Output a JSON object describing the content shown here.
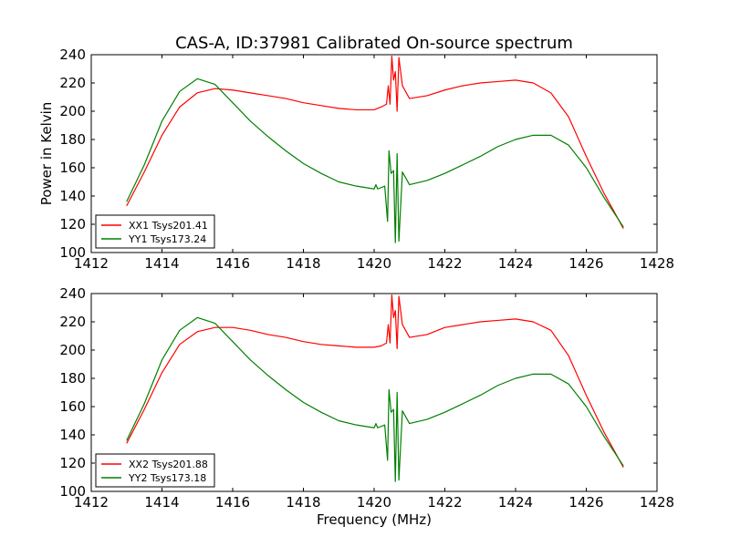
{
  "chart_data": [
    {
      "type": "line",
      "title": "CAS-A, ID:37981 Calibrated On-source spectrum",
      "xlabel": "",
      "ylabel": "Power in Kelvin",
      "xlim": [
        1412,
        1428
      ],
      "ylim": [
        100,
        240
      ],
      "xticks": [
        "1412",
        "1414",
        "1416",
        "1418",
        "1420",
        "1422",
        "1424",
        "1426",
        "1428"
      ],
      "yticks": [
        "100",
        "120",
        "140",
        "160",
        "180",
        "200",
        "220",
        "240"
      ],
      "grid": false,
      "legend_position": "lower-left",
      "series": [
        {
          "name": "XX1 Tsys201.41",
          "color": "#ff0000",
          "x": [
            1413.0,
            1413.5,
            1414.0,
            1414.5,
            1415.0,
            1415.5,
            1416.0,
            1416.5,
            1417.0,
            1417.5,
            1418.0,
            1418.5,
            1419.0,
            1419.5,
            1420.0,
            1420.2,
            1420.35,
            1420.4,
            1420.45,
            1420.5,
            1420.55,
            1420.6,
            1420.65,
            1420.7,
            1420.8,
            1421.0,
            1421.5,
            1422.0,
            1422.5,
            1423.0,
            1423.5,
            1424.0,
            1424.5,
            1425.0,
            1425.5,
            1426.0,
            1426.5,
            1427.05
          ],
          "values": [
            133,
            157,
            183,
            203,
            213,
            216,
            215,
            213,
            211,
            209,
            206,
            204,
            202,
            201,
            201,
            203,
            205,
            218,
            205,
            239,
            222,
            228,
            200,
            238,
            218,
            209,
            211,
            215,
            218,
            220,
            221,
            222,
            220,
            213,
            196,
            168,
            142,
            117
          ]
        },
        {
          "name": "YY1 Tsys173.24",
          "color": "#008000",
          "x": [
            1413.0,
            1413.5,
            1414.0,
            1414.5,
            1415.0,
            1415.5,
            1416.0,
            1416.5,
            1417.0,
            1417.5,
            1418.0,
            1418.5,
            1419.0,
            1419.5,
            1420.0,
            1420.05,
            1420.1,
            1420.3,
            1420.38,
            1420.42,
            1420.48,
            1420.55,
            1420.6,
            1420.65,
            1420.7,
            1420.8,
            1421.0,
            1421.5,
            1422.0,
            1422.5,
            1423.0,
            1423.5,
            1424.0,
            1424.5,
            1425.0,
            1425.5,
            1426.0,
            1426.5,
            1427.05
          ],
          "values": [
            136,
            162,
            193,
            214,
            223,
            219,
            206,
            193,
            182,
            172,
            163,
            156,
            150,
            147,
            145,
            148,
            145,
            147,
            122,
            172,
            156,
            158,
            107,
            170,
            108,
            157,
            148,
            151,
            156,
            162,
            168,
            175,
            180,
            183,
            183,
            176,
            160,
            139,
            118
          ]
        }
      ]
    },
    {
      "type": "line",
      "title": "",
      "xlabel": "Frequency (MHz)",
      "ylabel": "",
      "xlim": [
        1412,
        1428
      ],
      "ylim": [
        100,
        240
      ],
      "xticks": [
        "1412",
        "1414",
        "1416",
        "1418",
        "1420",
        "1422",
        "1424",
        "1426",
        "1428"
      ],
      "yticks": [
        "100",
        "120",
        "140",
        "160",
        "180",
        "200",
        "220",
        "240"
      ],
      "grid": false,
      "legend_position": "lower-left",
      "series": [
        {
          "name": "XX2 Tsys201.88",
          "color": "#ff0000",
          "x": [
            1413.0,
            1413.5,
            1414.0,
            1414.5,
            1415.0,
            1415.5,
            1416.0,
            1416.5,
            1417.0,
            1417.5,
            1418.0,
            1418.5,
            1419.0,
            1419.5,
            1420.0,
            1420.2,
            1420.35,
            1420.4,
            1420.45,
            1420.5,
            1420.55,
            1420.6,
            1420.65,
            1420.7,
            1420.8,
            1421.0,
            1421.5,
            1422.0,
            1422.5,
            1423.0,
            1423.5,
            1424.0,
            1424.5,
            1425.0,
            1425.5,
            1426.0,
            1426.5,
            1427.05
          ],
          "values": [
            134,
            158,
            184,
            204,
            213,
            216,
            216,
            214,
            211,
            209,
            206,
            204,
            203,
            202,
            202,
            203,
            205,
            218,
            205,
            239,
            223,
            228,
            201,
            238,
            218,
            209,
            211,
            216,
            218,
            220,
            221,
            222,
            220,
            214,
            196,
            168,
            142,
            117
          ]
        },
        {
          "name": "YY2 Tsys173.18",
          "color": "#008000",
          "x": [
            1413.0,
            1413.5,
            1414.0,
            1414.5,
            1415.0,
            1415.5,
            1416.0,
            1416.5,
            1417.0,
            1417.5,
            1418.0,
            1418.5,
            1419.0,
            1419.5,
            1420.0,
            1420.05,
            1420.1,
            1420.3,
            1420.38,
            1420.42,
            1420.48,
            1420.55,
            1420.6,
            1420.65,
            1420.7,
            1420.8,
            1421.0,
            1421.5,
            1422.0,
            1422.5,
            1423.0,
            1423.5,
            1424.0,
            1424.5,
            1425.0,
            1425.5,
            1426.0,
            1426.5,
            1427.05
          ],
          "values": [
            136,
            162,
            193,
            214,
            223,
            219,
            206,
            193,
            182,
            172,
            163,
            156,
            150,
            147,
            145,
            148,
            145,
            147,
            122,
            172,
            156,
            158,
            107,
            170,
            108,
            157,
            148,
            151,
            156,
            162,
            168,
            175,
            180,
            183,
            183,
            176,
            160,
            139,
            118
          ]
        }
      ]
    }
  ]
}
